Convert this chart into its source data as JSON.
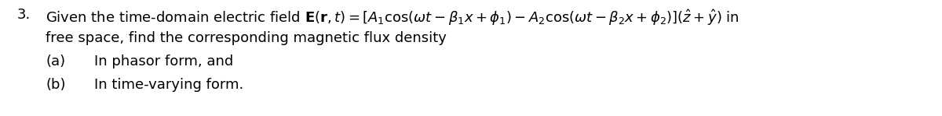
{
  "background_color": "#ffffff",
  "text_color": "#000000",
  "figsize": [
    12.0,
    1.49
  ],
  "dpi": 100,
  "number": "3.",
  "line2": "free space, find the corresponding magnetic flux density",
  "line3_a": "(a)",
  "line3_text": "In phasor form, and",
  "line4_b": "(b)",
  "line4_text": "In time-varying form.",
  "fontsize": 13.0,
  "font_family": "sans-serif"
}
